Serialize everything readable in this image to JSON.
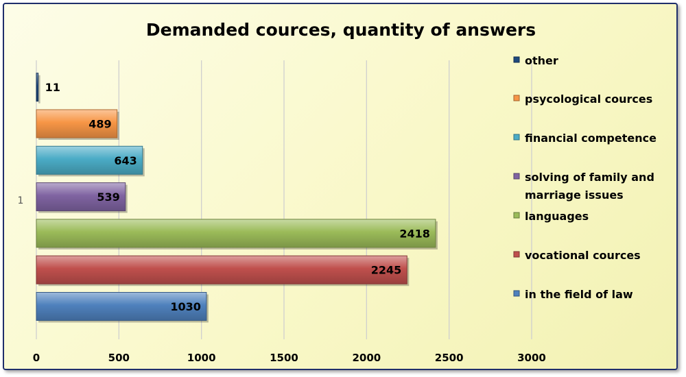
{
  "chart_data": {
    "type": "bar",
    "orientation": "horizontal",
    "title": "Demanded cources, quantity of answers",
    "category_label": "1",
    "xlim": [
      0,
      3000
    ],
    "x_ticks": [
      0,
      500,
      1000,
      1500,
      2000,
      2500,
      3000
    ],
    "grid": "vertical",
    "legend_position": "right",
    "series": [
      {
        "name": "in the field of law",
        "value": 1030,
        "color": "#4f81bd"
      },
      {
        "name": "vocational cources",
        "value": 2245,
        "color": "#c0504d"
      },
      {
        "name": "languages",
        "value": 2418,
        "color": "#9bbb59"
      },
      {
        "name": "solving of family and marriage issues",
        "value": 539,
        "color": "#8064a2"
      },
      {
        "name": "financial competence",
        "value": 643,
        "color": "#4bacc6"
      },
      {
        "name": "psycological cources",
        "value": 489,
        "color": "#f79646"
      },
      {
        "name": "other",
        "value": 11,
        "color": "#1f497d"
      }
    ]
  }
}
